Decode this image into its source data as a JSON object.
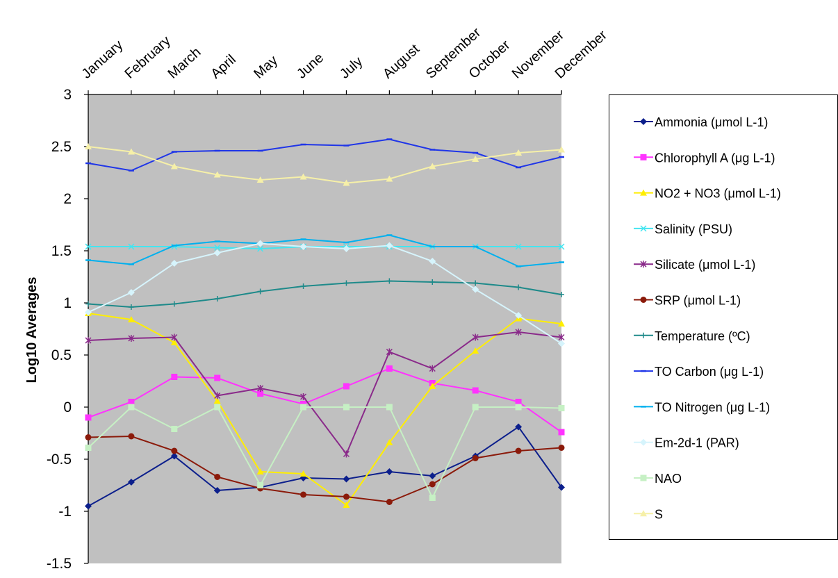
{
  "chart_data": {
    "type": "line",
    "title": "",
    "xlabel": "",
    "ylabel": "Log10 Averages",
    "ylim": [
      -1.5,
      3
    ],
    "yticks": [
      "3",
      "2.5",
      "2",
      "1.5",
      "1",
      "0.5",
      "0",
      "-0.5",
      "-1",
      "-1.5"
    ],
    "ytick_values": [
      3,
      2.5,
      2,
      1.5,
      1,
      0.5,
      0,
      -0.5,
      -1,
      -1.5
    ],
    "x_axis_position": "top",
    "plot_background": "#c0c0c0",
    "legend_position": "right",
    "categories": [
      "January",
      "February",
      "March",
      "April",
      "May",
      "June",
      "July",
      "August",
      "September",
      "October",
      "November",
      "December"
    ],
    "series": [
      {
        "name": "Ammonia (μmol L-1)",
        "color": "#0c1f8c",
        "marker": "diamond",
        "values": [
          -0.95,
          -0.72,
          -0.47,
          -0.8,
          -0.77,
          -0.68,
          -0.69,
          -0.62,
          -0.66,
          -0.47,
          -0.19,
          -0.77
        ]
      },
      {
        "name": "Chlorophyll A (μg L-1)",
        "color": "#ff33ff",
        "marker": "square",
        "values": [
          -0.1,
          0.05,
          0.29,
          0.28,
          0.13,
          0.03,
          0.2,
          0.37,
          0.23,
          0.16,
          0.05,
          -0.24
        ]
      },
      {
        "name": "NO2 + NO3 (μmol L-1)",
        "color": "#ffee00",
        "marker": "triangle",
        "values": [
          0.9,
          0.84,
          0.62,
          0.06,
          -0.62,
          -0.64,
          -0.94,
          -0.34,
          0.2,
          0.54,
          0.85,
          0.8
        ]
      },
      {
        "name": "Salinity (PSU)",
        "color": "#44e5f0",
        "marker": "x",
        "values": [
          1.54,
          1.54,
          1.54,
          1.53,
          1.52,
          1.54,
          1.54,
          1.54,
          1.54,
          1.54,
          1.54,
          1.54
        ]
      },
      {
        "name": "Silicate (μmol L-1)",
        "color": "#8a2a8a",
        "marker": "star",
        "values": [
          0.64,
          0.66,
          0.67,
          0.11,
          0.18,
          0.1,
          -0.45,
          0.53,
          0.37,
          0.67,
          0.72,
          0.67
        ]
      },
      {
        "name": "SRP (μmol L-1)",
        "color": "#8b1a0a",
        "marker": "circle",
        "values": [
          -0.29,
          -0.28,
          -0.42,
          -0.67,
          -0.78,
          -0.84,
          -0.86,
          -0.91,
          -0.74,
          -0.49,
          -0.42,
          -0.39
        ]
      },
      {
        "name": "Temperature (ºC)",
        "color": "#1e8a8a",
        "marker": "plus",
        "values": [
          0.99,
          0.96,
          0.99,
          1.04,
          1.11,
          1.16,
          1.19,
          1.21,
          1.2,
          1.19,
          1.15,
          1.08
        ]
      },
      {
        "name": "TO Carbon (μg L-1)",
        "color": "#1f35e8",
        "marker": "dash",
        "values": [
          2.34,
          2.27,
          2.45,
          2.46,
          2.46,
          2.52,
          2.51,
          2.57,
          2.47,
          2.44,
          2.3,
          2.4
        ]
      },
      {
        "name": "TO Nitrogen (μg L-1)",
        "color": "#00b0ee",
        "marker": "dash",
        "values": [
          1.41,
          1.37,
          1.55,
          1.59,
          1.57,
          1.61,
          1.58,
          1.65,
          1.54,
          1.54,
          1.35,
          1.39
        ]
      },
      {
        "name": "Em-2d-1 (PAR)",
        "color": "#d6f4fc",
        "marker": "diamond",
        "values": [
          0.91,
          1.1,
          1.38,
          1.48,
          1.57,
          1.54,
          1.52,
          1.55,
          1.4,
          1.13,
          0.88,
          0.61
        ]
      },
      {
        "name": "NAO",
        "color": "#c6f0c4",
        "marker": "square",
        "values": [
          -0.39,
          0.0,
          -0.21,
          0.0,
          -0.75,
          0.0,
          0.0,
          0.0,
          -0.87,
          0.0,
          0.0,
          -0.01
        ]
      },
      {
        "name": "S",
        "color": "#f6f0a8",
        "marker": "triangle",
        "values": [
          2.5,
          2.45,
          2.31,
          2.23,
          2.18,
          2.21,
          2.15,
          2.19,
          2.31,
          2.38,
          2.44,
          2.47
        ]
      }
    ]
  }
}
